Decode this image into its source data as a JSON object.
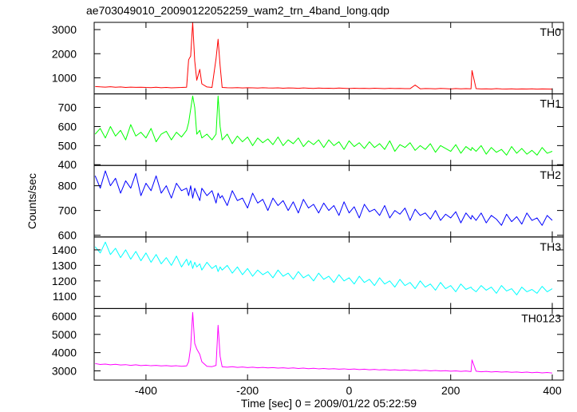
{
  "chart_data": {
    "type": "line",
    "title": "ae703049010_20090122052259_wam2_trn_4band_long.qdp",
    "xlabel": "Time [sec] 0 = 2009/01/22 05:22:59",
    "ylabel": "Counts/sec",
    "xlim": [
      -502,
      422
    ],
    "xticks": [
      -400,
      -200,
      0,
      200,
      400
    ],
    "x": [
      -500,
      -490,
      -480,
      -470,
      -460,
      -450,
      -440,
      -430,
      -420,
      -410,
      -400,
      -390,
      -380,
      -370,
      -360,
      -350,
      -340,
      -330,
      -320,
      -316,
      -312,
      -308,
      -304,
      -300,
      -294,
      -290,
      -280,
      -270,
      -262,
      -258,
      -254,
      -250,
      -240,
      -230,
      -220,
      -210,
      -200,
      -190,
      -180,
      -170,
      -160,
      -150,
      -140,
      -130,
      -120,
      -110,
      -100,
      -90,
      -80,
      -70,
      -60,
      -50,
      -40,
      -30,
      -20,
      -10,
      0,
      10,
      20,
      30,
      40,
      50,
      60,
      70,
      80,
      90,
      100,
      110,
      120,
      130,
      140,
      150,
      160,
      170,
      180,
      190,
      200,
      210,
      220,
      230,
      240,
      242,
      250,
      260,
      270,
      280,
      290,
      300,
      310,
      320,
      330,
      340,
      350,
      360,
      370,
      380,
      390,
      400
    ],
    "series": [
      {
        "name": "TH0",
        "color": "#ff0000",
        "ylim": [
          333,
          3300
        ],
        "yticks": [
          1000,
          2000,
          3000
        ],
        "values": [
          640,
          625,
          615,
          630,
          610,
          620,
          600,
          615,
          605,
          610,
          600,
          595,
          610,
          590,
          600,
          585,
          595,
          600,
          610,
          1750,
          1900,
          3300,
          1700,
          900,
          1350,
          750,
          620,
          600,
          1800,
          2600,
          1500,
          600,
          590,
          585,
          595,
          580,
          590,
          585,
          575,
          590,
          580,
          575,
          585,
          570,
          580,
          575,
          565,
          580,
          570,
          560,
          575,
          565,
          570,
          560,
          575,
          565,
          555,
          570,
          560,
          565,
          555,
          570,
          560,
          550,
          565,
          555,
          560,
          550,
          550,
          700,
          545,
          555,
          550,
          545,
          560,
          550,
          540,
          555,
          545,
          550,
          545,
          1300,
          550,
          540,
          545,
          535,
          550,
          540,
          535,
          545,
          530,
          540,
          535,
          545,
          530,
          540,
          535,
          530
        ]
      },
      {
        "name": "TH1",
        "color": "#00ff00",
        "ylim": [
          396,
          771
        ],
        "yticks": [
          400,
          500,
          600,
          700
        ],
        "values": [
          560,
          590,
          540,
          600,
          550,
          580,
          530,
          610,
          550,
          570,
          540,
          590,
          520,
          560,
          575,
          530,
          570,
          545,
          580,
          620,
          690,
          760,
          700,
          560,
          580,
          540,
          560,
          530,
          560,
          760,
          600,
          530,
          560,
          510,
          550,
          520,
          545,
          500,
          540,
          515,
          535,
          505,
          545,
          500,
          530,
          510,
          540,
          495,
          525,
          505,
          530,
          490,
          530,
          500,
          520,
          480,
          525,
          495,
          515,
          485,
          520,
          490,
          510,
          480,
          525,
          470,
          505,
          490,
          515,
          475,
          500,
          480,
          510,
          465,
          500,
          485,
          470,
          505,
          460,
          495,
          475,
          490,
          470,
          500,
          455,
          490,
          465,
          480,
          450,
          495,
          460,
          485,
          455,
          475,
          450,
          490,
          460,
          470
        ]
      },
      {
        "name": "TH2",
        "color": "#0000ff",
        "ylim": [
          593,
          882
        ],
        "yticks": [
          600,
          700,
          800
        ],
        "values": [
          840,
          790,
          860,
          800,
          830,
          770,
          820,
          790,
          850,
          760,
          810,
          780,
          840,
          770,
          800,
          750,
          810,
          780,
          790,
          760,
          800,
          750,
          790,
          770,
          740,
          790,
          760,
          780,
          730,
          770,
          750,
          760,
          720,
          780,
          740,
          750,
          710,
          770,
          730,
          745,
          700,
          750,
          720,
          740,
          700,
          735,
          690,
          745,
          710,
          725,
          690,
          730,
          700,
          720,
          680,
          735,
          690,
          715,
          670,
          725,
          695,
          705,
          680,
          720,
          670,
          700,
          685,
          710,
          660,
          705,
          680,
          690,
          665,
          700,
          660,
          685,
          670,
          695,
          650,
          690,
          665,
          680,
          660,
          690,
          650,
          680,
          665,
          640,
          685,
          655,
          675,
          645,
          690,
          660,
          670,
          640,
          680,
          660
        ]
      },
      {
        "name": "TH3",
        "color": "#00ffff",
        "ylim": [
          1022,
          1483
        ],
        "yticks": [
          1100,
          1200,
          1300,
          1400
        ],
        "values": [
          1420,
          1380,
          1450,
          1370,
          1410,
          1350,
          1400,
          1340,
          1390,
          1330,
          1380,
          1320,
          1370,
          1310,
          1350,
          1300,
          1360,
          1290,
          1340,
          1300,
          1330,
          1280,
          1320,
          1290,
          1310,
          1270,
          1320,
          1280,
          1300,
          1260,
          1290,
          1270,
          1300,
          1250,
          1290,
          1240,
          1280,
          1230,
          1270,
          1240,
          1260,
          1220,
          1270,
          1230,
          1250,
          1210,
          1260,
          1220,
          1240,
          1200,
          1250,
          1210,
          1230,
          1190,
          1240,
          1200,
          1220,
          1180,
          1230,
          1190,
          1210,
          1170,
          1220,
          1180,
          1200,
          1160,
          1210,
          1170,
          1190,
          1150,
          1200,
          1160,
          1180,
          1140,
          1190,
          1150,
          1170,
          1130,
          1180,
          1145,
          1160,
          1150,
          1130,
          1170,
          1140,
          1160,
          1120,
          1170,
          1135,
          1150,
          1110,
          1160,
          1130,
          1145,
          1120,
          1165,
          1130,
          1150
        ]
      },
      {
        "name": "TH0123",
        "color": "#ff00ff",
        "ylim": [
          2494,
          6420
        ],
        "yticks": [
          3000,
          4000,
          5000,
          6000
        ],
        "values": [
          3400,
          3350,
          3370,
          3330,
          3360,
          3320,
          3340,
          3300,
          3330,
          3290,
          3310,
          3280,
          3300,
          3270,
          3290,
          3260,
          3280,
          3250,
          3270,
          3500,
          4300,
          6200,
          4500,
          4200,
          3900,
          3500,
          3250,
          3230,
          3300,
          5500,
          3800,
          3220,
          3200,
          3230,
          3190,
          3210,
          3180,
          3200,
          3170,
          3190,
          3160,
          3180,
          3150,
          3170,
          3140,
          3160,
          3130,
          3150,
          3120,
          3140,
          3110,
          3130,
          3100,
          3120,
          3090,
          3110,
          3080,
          3100,
          3070,
          3090,
          3060,
          3080,
          3050,
          3070,
          3040,
          3060,
          3030,
          3050,
          3020,
          3040,
          3010,
          3030,
          3000,
          3020,
          2990,
          3010,
          2980,
          3000,
          2970,
          2990,
          2960,
          3600,
          2980,
          2950,
          2970,
          2940,
          2960,
          2930,
          2950,
          2920,
          2940,
          2910,
          2930,
          2900,
          2920,
          2890,
          2910,
          2880
        ]
      }
    ]
  }
}
